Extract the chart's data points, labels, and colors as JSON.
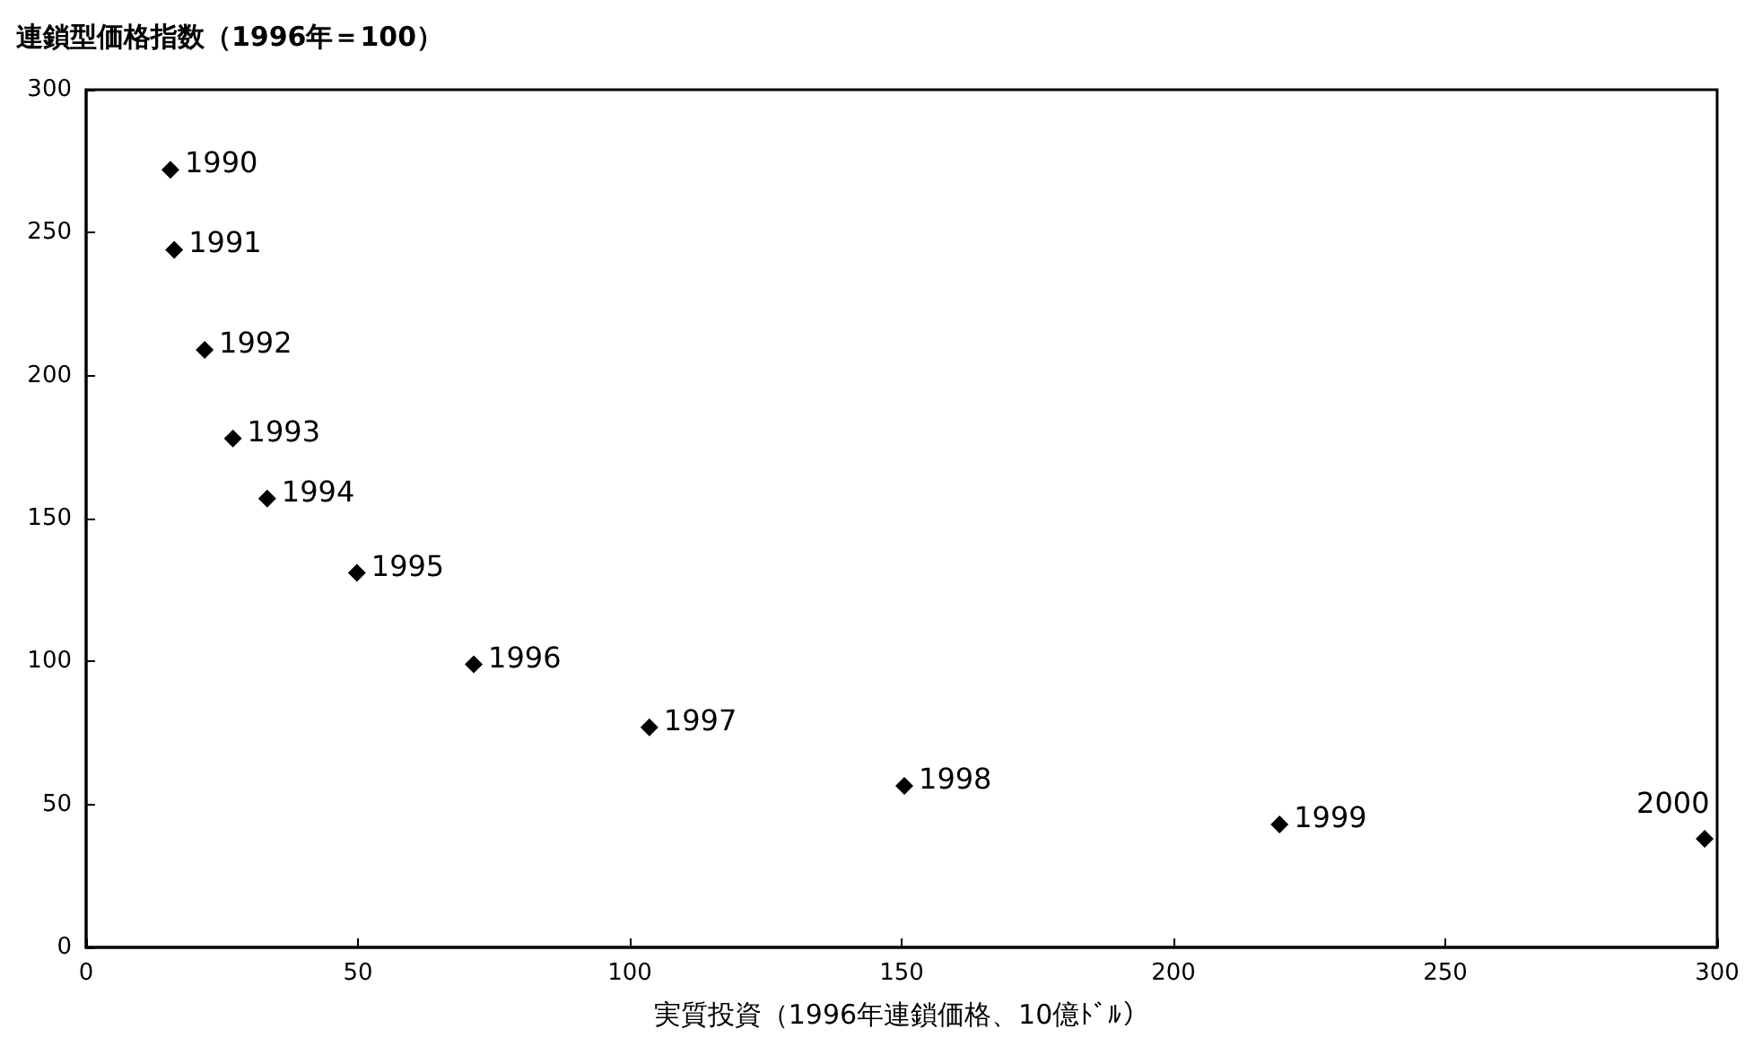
{
  "chart_data": {
    "type": "scatter",
    "title": "連鎖型価格指数（1996年＝100）",
    "xlabel": "実質投資（1996年連鎖価格、10億ﾄﾞﾙ）",
    "x": [
      15.5,
      16.2,
      21.8,
      27,
      33.3,
      49.8,
      71.3,
      103.6,
      150.5,
      219.5,
      297.7
    ],
    "series": [
      {
        "color": "#000000",
        "values": [
          272,
          244,
          209,
          178,
          157,
          131,
          99,
          77,
          56.5,
          43,
          38
        ]
      }
    ],
    "xlim": [
      0,
      300
    ],
    "xticks": [
      0,
      50,
      100,
      150,
      200,
      250,
      300
    ],
    "ylim": [
      0,
      300
    ],
    "yticks": [
      0,
      50,
      100,
      150,
      200,
      250,
      300
    ],
    "marker": "diamond",
    "annotations": [
      {
        "text": "1990",
        "x": 15.5,
        "y": 272
      },
      {
        "text": "1991",
        "x": 16.2,
        "y": 244
      },
      {
        "text": "1992",
        "x": 21.8,
        "y": 209
      },
      {
        "text": "1993",
        "x": 27,
        "y": 178
      },
      {
        "text": "1994",
        "x": 33.3,
        "y": 157
      },
      {
        "text": "1995",
        "x": 49.8,
        "y": 131
      },
      {
        "text": "1996",
        "x": 71.3,
        "y": 99
      },
      {
        "text": "1997",
        "x": 103.6,
        "y": 77
      },
      {
        "text": "1998",
        "x": 150.5,
        "y": 56.5
      },
      {
        "text": "1999",
        "x": 219.5,
        "y": 43
      },
      {
        "text": "2000",
        "x": 297.7,
        "y": 38
      }
    ]
  }
}
